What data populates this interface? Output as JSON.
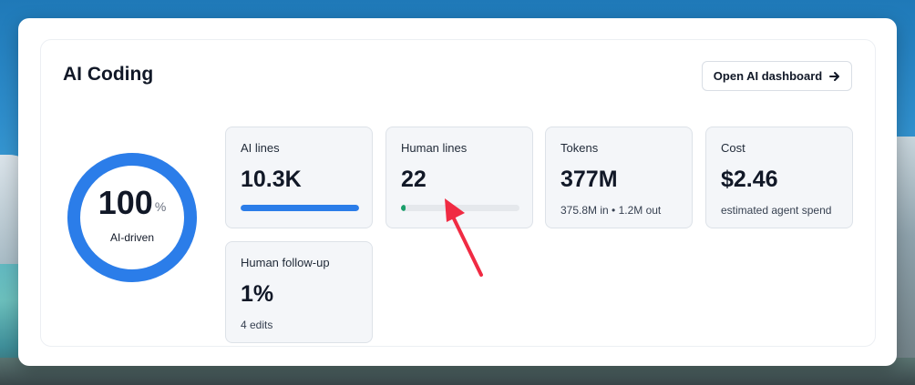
{
  "page": {
    "title": "AI Coding",
    "dashboard_button": {
      "label": "Open AI dashboard",
      "icon": "arrow-right-icon"
    }
  },
  "summary": {
    "value": "100",
    "unit": "%",
    "label": "AI-driven",
    "fraction": 1.0,
    "color": "#2b7de9"
  },
  "stats": [
    {
      "label": "AI lines",
      "value": "10.3K",
      "bar_fraction": 1.0,
      "bar_color": "#2b7de9"
    },
    {
      "label": "Human lines",
      "value": "22",
      "bar_fraction": 0.02,
      "bar_color": "#1a9e6a"
    },
    {
      "label": "Tokens",
      "value": "377M",
      "sub": "375.8M in • 1.2M out"
    },
    {
      "label": "Cost",
      "value": "$2.46",
      "sub": "estimated agent spend"
    },
    {
      "label": "Human follow-up",
      "value": "1%",
      "sub": "4 edits"
    }
  ],
  "annotation": {
    "icon": "red-arrow-annotation-icon",
    "color": "#f02b43"
  },
  "colors": {
    "accent": "#2b7de9",
    "human": "#1a9e6a",
    "card_bg": "#f4f6f9"
  }
}
